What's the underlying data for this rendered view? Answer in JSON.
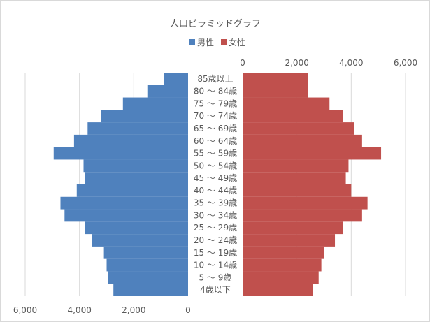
{
  "chart_data": {
    "type": "bar",
    "title": "人口ピラミッドグラフ",
    "orientation": "horizontal-butterfly",
    "legend_position": "top",
    "grid": true,
    "categories": [
      "4歳以下",
      "5 ～ 9歳",
      "10 ～ 14歳",
      "15 ～ 19歳",
      "20 ～ 24歳",
      "25 ～ 29歳",
      "30 ～ 34歳",
      "35 ～ 39歳",
      "40 ～ 44歳",
      "45 ～ 49歳",
      "50 ～ 54歳",
      "55 ～ 59歳",
      "60 ～ 64歳",
      "65 ～ 69歳",
      "70 ～ 74歳",
      "75 ～ 79歳",
      "80 ～ 84歳",
      "85歳以上"
    ],
    "series": [
      {
        "name": "男性",
        "color": "#4f81bd",
        "side": "left",
        "values": [
          2750,
          2950,
          3000,
          3100,
          3550,
          3800,
          4550,
          4700,
          4100,
          3800,
          3850,
          4950,
          4200,
          3700,
          3200,
          2400,
          1500,
          900
        ]
      },
      {
        "name": "女性",
        "color": "#c0504d",
        "side": "right",
        "values": [
          2600,
          2800,
          2900,
          3000,
          3400,
          3700,
          4400,
          4600,
          4000,
          3800,
          3900,
          5100,
          4400,
          4100,
          3700,
          3200,
          2400,
          2400
        ]
      }
    ],
    "top_axis": {
      "range": [
        0,
        6000
      ],
      "ticks": [
        "0",
        "2,000",
        "4,000",
        "6,000"
      ]
    },
    "bottom_axis": {
      "range": [
        6000,
        0
      ],
      "ticks": [
        "6,000",
        "4,000",
        "2,000",
        "0"
      ]
    }
  }
}
